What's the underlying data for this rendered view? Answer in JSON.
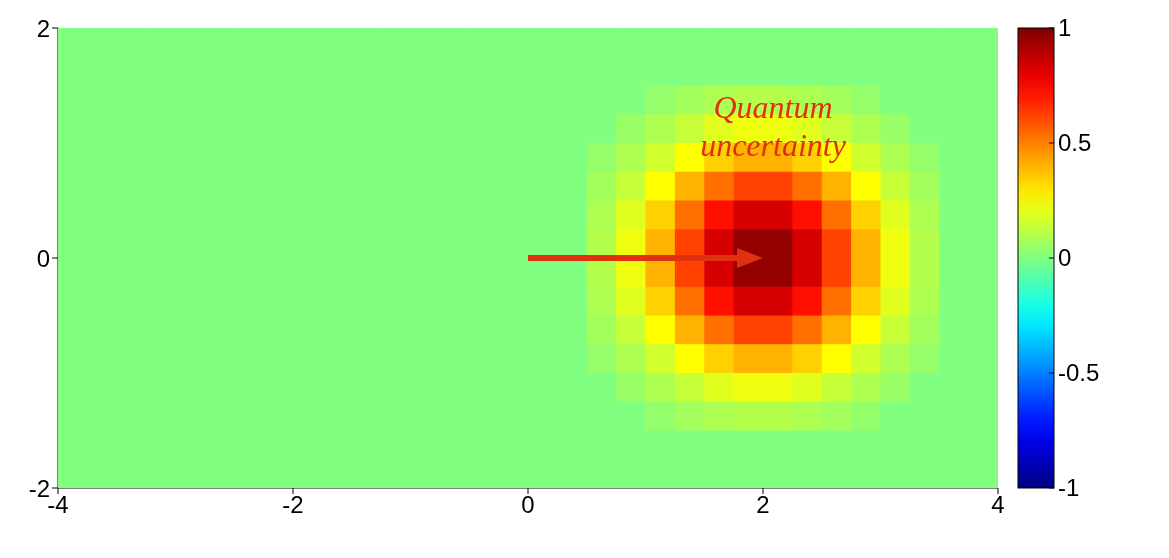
{
  "chart_data": {
    "type": "heatmap",
    "x": [
      -3.875,
      -3.625,
      -3.375,
      -3.125,
      -2.875,
      -2.625,
      -2.375,
      -2.125,
      -1.875,
      -1.625,
      -1.375,
      -1.125,
      -0.875,
      -0.625,
      -0.375,
      -0.125,
      0.125,
      0.375,
      0.625,
      0.875,
      1.125,
      1.375,
      1.625,
      1.875,
      2.125,
      2.375,
      2.625,
      2.875,
      3.125,
      3.375,
      3.625,
      3.875
    ],
    "cells": [
      [
        0,
        0,
        0,
        0,
        0,
        0,
        0,
        0,
        0,
        0,
        0,
        0,
        0,
        0,
        0,
        0,
        0,
        0,
        0,
        0,
        0,
        0,
        0,
        0,
        0,
        0,
        0,
        0,
        0,
        0,
        0,
        0
      ],
      [
        0,
        0,
        0,
        0,
        0,
        0,
        0,
        0,
        0,
        0,
        0,
        0,
        0,
        0,
        0,
        0,
        0,
        0,
        0,
        0,
        0,
        0,
        0,
        0,
        0,
        0,
        0,
        0,
        0,
        0,
        0,
        0
      ],
      [
        0,
        0,
        0,
        0,
        0,
        0,
        0,
        0,
        0,
        0,
        0,
        0,
        0,
        0,
        0,
        0,
        0,
        0,
        0,
        0,
        0.04,
        0.07,
        0.09,
        0.1,
        0.1,
        0.09,
        0.07,
        0.04,
        0,
        0,
        0,
        0
      ],
      [
        0,
        0,
        0,
        0,
        0,
        0,
        0,
        0,
        0,
        0,
        0,
        0,
        0,
        0,
        0,
        0,
        0,
        0,
        0,
        0.05,
        0.09,
        0.14,
        0.19,
        0.22,
        0.22,
        0.19,
        0.14,
        0.09,
        0.05,
        0,
        0,
        0
      ],
      [
        0,
        0,
        0,
        0,
        0,
        0,
        0,
        0,
        0,
        0,
        0,
        0,
        0,
        0,
        0,
        0,
        0,
        0,
        0.04,
        0.09,
        0.16,
        0.25,
        0.34,
        0.4,
        0.4,
        0.34,
        0.25,
        0.16,
        0.09,
        0.04,
        0,
        0
      ],
      [
        0,
        0,
        0,
        0,
        0,
        0,
        0,
        0,
        0,
        0,
        0,
        0,
        0,
        0,
        0,
        0,
        0,
        0,
        0.07,
        0.14,
        0.25,
        0.4,
        0.53,
        0.62,
        0.62,
        0.53,
        0.4,
        0.25,
        0.14,
        0.07,
        0,
        0
      ],
      [
        0,
        0,
        0,
        0,
        0,
        0,
        0,
        0,
        0,
        0,
        0,
        0,
        0,
        0,
        0,
        0,
        0,
        0,
        0.09,
        0.19,
        0.34,
        0.53,
        0.72,
        0.83,
        0.83,
        0.72,
        0.53,
        0.34,
        0.19,
        0.09,
        0,
        0
      ],
      [
        0,
        0,
        0,
        0,
        0,
        0,
        0,
        0,
        0,
        0,
        0,
        0,
        0,
        0,
        0,
        0,
        0,
        0,
        0.1,
        0.22,
        0.4,
        0.62,
        0.83,
        0.96,
        0.96,
        0.83,
        0.62,
        0.4,
        0.22,
        0.1,
        0,
        0
      ],
      [
        0,
        0,
        0,
        0,
        0,
        0,
        0,
        0,
        0,
        0,
        0,
        0,
        0,
        0,
        0,
        0,
        0,
        0,
        0.1,
        0.22,
        0.4,
        0.62,
        0.83,
        0.96,
        0.96,
        0.83,
        0.62,
        0.4,
        0.22,
        0.1,
        0,
        0
      ],
      [
        0,
        0,
        0,
        0,
        0,
        0,
        0,
        0,
        0,
        0,
        0,
        0,
        0,
        0,
        0,
        0,
        0,
        0,
        0.09,
        0.19,
        0.34,
        0.53,
        0.72,
        0.83,
        0.83,
        0.72,
        0.53,
        0.34,
        0.19,
        0.09,
        0,
        0
      ],
      [
        0,
        0,
        0,
        0,
        0,
        0,
        0,
        0,
        0,
        0,
        0,
        0,
        0,
        0,
        0,
        0,
        0,
        0,
        0.07,
        0.14,
        0.25,
        0.4,
        0.53,
        0.62,
        0.62,
        0.53,
        0.4,
        0.25,
        0.14,
        0.07,
        0,
        0
      ],
      [
        0,
        0,
        0,
        0,
        0,
        0,
        0,
        0,
        0,
        0,
        0,
        0,
        0,
        0,
        0,
        0,
        0,
        0,
        0.04,
        0.09,
        0.16,
        0.25,
        0.34,
        0.4,
        0.4,
        0.34,
        0.25,
        0.16,
        0.09,
        0.04,
        0,
        0
      ],
      [
        0,
        0,
        0,
        0,
        0,
        0,
        0,
        0,
        0,
        0,
        0,
        0,
        0,
        0,
        0,
        0,
        0,
        0,
        0,
        0.05,
        0.09,
        0.14,
        0.19,
        0.22,
        0.22,
        0.19,
        0.14,
        0.09,
        0.05,
        0,
        0,
        0
      ],
      [
        0,
        0,
        0,
        0,
        0,
        0,
        0,
        0,
        0,
        0,
        0,
        0,
        0,
        0,
        0,
        0,
        0,
        0,
        0,
        0,
        0.04,
        0.07,
        0.09,
        0.1,
        0.1,
        0.09,
        0.07,
        0.04,
        0,
        0,
        0,
        0
      ],
      [
        0,
        0,
        0,
        0,
        0,
        0,
        0,
        0,
        0,
        0,
        0,
        0,
        0,
        0,
        0,
        0,
        0,
        0,
        0,
        0,
        0,
        0,
        0,
        0,
        0,
        0,
        0,
        0,
        0,
        0,
        0,
        0
      ],
      [
        0,
        0,
        0,
        0,
        0,
        0,
        0,
        0,
        0,
        0,
        0,
        0,
        0,
        0,
        0,
        0,
        0,
        0,
        0,
        0,
        0,
        0,
        0,
        0,
        0,
        0,
        0,
        0,
        0,
        0,
        0,
        0
      ]
    ],
    "xlim": [
      -4,
      4
    ],
    "ylim": [
      -2,
      2
    ],
    "xticks": [
      -4,
      -2,
      0,
      2,
      4
    ],
    "yticks": [
      -2,
      0,
      2
    ],
    "clim": [
      -1,
      1
    ],
    "cticks": [
      -1,
      -0.5,
      0,
      0.5,
      1
    ],
    "annotations": [
      "Quantum uncertainty"
    ]
  }
}
